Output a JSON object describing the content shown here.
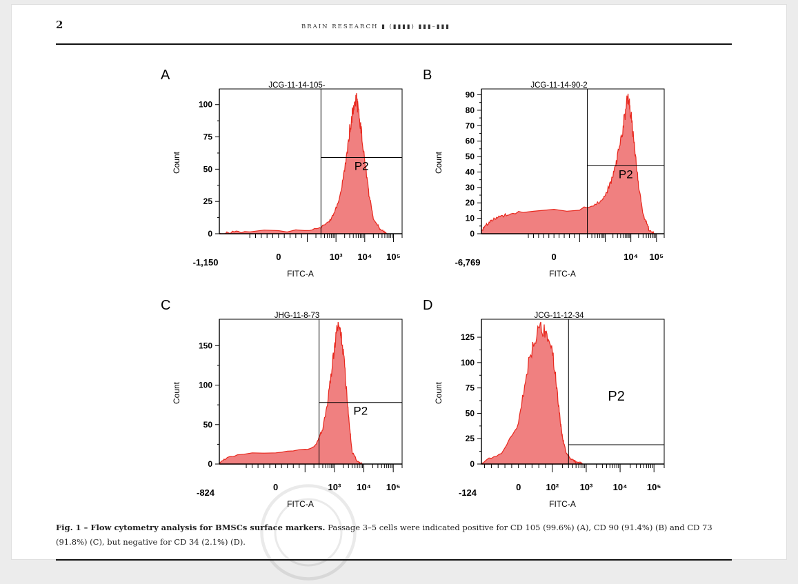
{
  "page": {
    "number": "2",
    "journal_header": "BRAIN RESEARCH ▮ (▮▮▮▮) ▮▮▮–▮▮▮"
  },
  "caption": {
    "label": "Fig. 1 – Flow cytometry analysis for BMSCs surface markers.",
    "text": " Passage 3–5 cells were indicated positive for CD 105 (99.6%) (A), CD 90 (91.4%) (B) and CD 73 (91.8%) (C), but negative for CD 34 (2.1%) (D)."
  },
  "colors": {
    "fill": "#f08080",
    "line": "#e8281e",
    "axis": "#000000"
  },
  "chart_data": [
    {
      "type": "area",
      "panel_letter": "A",
      "title": "JCG-11-14-105-",
      "xlabel": "FITC-A",
      "ylabel": "Count",
      "x_scale": "biexponential",
      "xlim": [
        -1150,
        200000
      ],
      "ylim": [
        0,
        110
      ],
      "yticks": [
        0,
        25,
        50,
        75,
        100
      ],
      "xtick_labels": [
        "-1,150",
        "0",
        "10³",
        "10⁴",
        "10⁵"
      ],
      "gate": {
        "label": "P2",
        "x_start": 300,
        "level": 59
      },
      "x": [
        -1150,
        -500,
        0,
        300,
        700,
        1200,
        2000,
        3000,
        4000,
        5000,
        6000,
        8000,
        10000,
        14000,
        20000,
        35000,
        60000
      ],
      "values": [
        0,
        1,
        2,
        5,
        12,
        25,
        50,
        80,
        98,
        105,
        95,
        75,
        55,
        30,
        12,
        3,
        0
      ]
    },
    {
      "type": "area",
      "panel_letter": "B",
      "title": "JCG-11-14-90-2",
      "xlabel": "FITC-A",
      "ylabel": "Count",
      "x_scale": "biexponential",
      "xlim": [
        -6769,
        200000
      ],
      "ylim": [
        0,
        92
      ],
      "yticks": [
        0,
        10,
        20,
        30,
        40,
        50,
        60,
        70,
        80,
        90
      ],
      "xtick_labels": [
        "-6,769",
        "0",
        "10⁴",
        "10⁵"
      ],
      "gate": {
        "label": "P2",
        "x_start": 200,
        "level": 44
      },
      "x": [
        -6769,
        -4000,
        -2000,
        -800,
        0,
        500,
        1000,
        2000,
        3000,
        5000,
        7000,
        8000,
        10000,
        14000,
        20000,
        30000,
        50000,
        80000
      ],
      "values": [
        2,
        6,
        10,
        12,
        15,
        20,
        25,
        38,
        50,
        70,
        85,
        88,
        78,
        55,
        30,
        12,
        3,
        0
      ]
    },
    {
      "type": "area",
      "panel_letter": "C",
      "title": "JHG-11-8-73",
      "xlabel": "FITC-A",
      "ylabel": "Count",
      "x_scale": "biexponential",
      "xlim": [
        -824,
        200000
      ],
      "ylim": [
        0,
        180
      ],
      "yticks": [
        0,
        50,
        100,
        150
      ],
      "xtick_labels": [
        "-824",
        "0",
        "10³",
        "10⁴",
        "10⁵"
      ],
      "gate": {
        "label": "P2",
        "x_start": 300,
        "level": 78
      },
      "x": [
        -824,
        -400,
        0,
        200,
        400,
        700,
        1000,
        1300,
        1600,
        2000,
        2600,
        3200,
        4000,
        6000,
        9000
      ],
      "values": [
        2,
        8,
        15,
        22,
        45,
        100,
        150,
        178,
        170,
        140,
        90,
        50,
        15,
        3,
        0
      ]
    },
    {
      "type": "area",
      "panel_letter": "D",
      "title": "JCG-11-12-34",
      "xlabel": "FITC-A",
      "ylabel": "Count",
      "x_scale": "biexponential",
      "xlim": [
        -124,
        200000
      ],
      "ylim": [
        0,
        140
      ],
      "yticks": [
        0,
        25,
        50,
        75,
        100,
        125
      ],
      "xtick_labels": [
        "-124",
        "0",
        "10²",
        "10³",
        "10⁴",
        "10⁵"
      ],
      "gate": {
        "label": "P2",
        "x_start": 300,
        "level": 19
      },
      "x": [
        -124,
        -50,
        0,
        30,
        60,
        80,
        100,
        130,
        160,
        200,
        260,
        350,
        500,
        800
      ],
      "values": [
        0,
        10,
        40,
        100,
        135,
        130,
        110,
        80,
        50,
        25,
        10,
        5,
        2,
        0
      ]
    }
  ]
}
